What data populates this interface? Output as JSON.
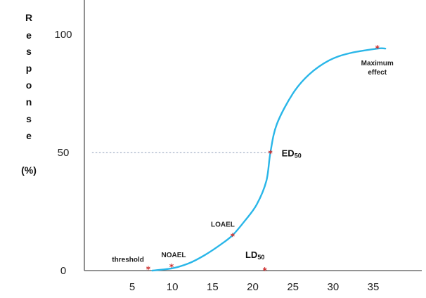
{
  "chart_data": {
    "type": "line",
    "ylabel_letters": [
      "R",
      "e",
      "s",
      "p",
      "o",
      "n",
      "s",
      "e"
    ],
    "ylabel_unit": "(%)",
    "xlabel": "",
    "xlim": [
      0,
      38
    ],
    "ylim": [
      0,
      105
    ],
    "x_ticks": [
      5,
      10,
      15,
      20,
      25,
      30,
      35
    ],
    "y_ticks": [
      0,
      50,
      100
    ],
    "series": [
      {
        "color": "#29b6e8",
        "points": [
          [
            7.5,
            0
          ],
          [
            10,
            1
          ],
          [
            12,
            3
          ],
          [
            14,
            6.5
          ],
          [
            16,
            11
          ],
          [
            17.5,
            15
          ],
          [
            19,
            21
          ],
          [
            20.5,
            28
          ],
          [
            21.7,
            38
          ],
          [
            22.2,
            50
          ],
          [
            23,
            62
          ],
          [
            25,
            75
          ],
          [
            27,
            83
          ],
          [
            29.5,
            89
          ],
          [
            32,
            92
          ],
          [
            35.5,
            94
          ],
          [
            36.5,
            94
          ]
        ]
      }
    ],
    "markers": [
      {
        "id": "threshold",
        "x": 7,
        "y": 0.5,
        "label": "threshold",
        "label_anchor": "end"
      },
      {
        "id": "noael",
        "x": 9.9,
        "y": 1.5,
        "label": "NOAEL",
        "label_anchor": "middle"
      },
      {
        "id": "loael",
        "x": 17.5,
        "y": 14.5,
        "label": "LOAEL",
        "label_anchor": "middle"
      },
      {
        "id": "ld50",
        "x": 21.5,
        "y": 0,
        "label": "LD",
        "label_sub": "50",
        "label_anchor": "middle"
      },
      {
        "id": "ed50",
        "x": 22.2,
        "y": 49.5,
        "label": "ED",
        "label_sub": "50",
        "label_anchor": "start"
      },
      {
        "id": "maxeffect",
        "x": 35.5,
        "y": 94,
        "label": "Maximum",
        "label2": "effect",
        "label_anchor": "middle"
      }
    ],
    "reference_lines": [
      {
        "type": "horizontal",
        "y": 50,
        "x_from": 0,
        "x_to": 22.2,
        "style": "dotted"
      }
    ],
    "marker_color": "#cc2a2a",
    "axis_color": "#555555",
    "grid": false
  }
}
